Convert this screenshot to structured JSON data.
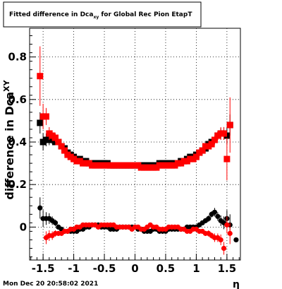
{
  "chart_data": {
    "type": "scatter",
    "title": "Fitted difference in Dca",
    "title_subscript": "xy",
    "title_suffix": " for Global Rec Pion EtapT",
    "xlabel": "η",
    "ylabel": "difference in Dca",
    "ylabel_subscript": "XY",
    "xlim": [
      -1.72,
      1.72
    ],
    "ylim": [
      -0.155,
      0.935
    ],
    "x_ticks": [
      -1.5,
      -1,
      -0.5,
      0,
      0.5,
      1,
      1.5
    ],
    "x_tick_labels": [
      "-1.5",
      "-1",
      "-0.5",
      "0",
      "0.5",
      "1",
      "1.5"
    ],
    "y_ticks": [
      0,
      0.2,
      0.4,
      0.6,
      0.8
    ],
    "y_tick_labels": [
      "0",
      "0.2",
      "0.4",
      "0.6",
      "0.8"
    ],
    "grid": true,
    "timestamp": "Mon Dec 20 20:58:02 2021",
    "colors": {
      "black_series": "#000000",
      "red_series": "#ff0000"
    },
    "series": [
      {
        "marker": "square",
        "color": "#000000",
        "x": [
          -1.55,
          -1.5,
          -1.45,
          -1.4,
          -1.35,
          -1.3,
          -1.25,
          -1.2,
          -1.15,
          -1.1,
          -1.05,
          -1.0,
          -0.95,
          -0.9,
          -0.85,
          -0.8,
          -0.75,
          -0.7,
          -0.65,
          -0.6,
          -0.55,
          -0.5,
          -0.45,
          -0.4,
          -0.35,
          -0.3,
          -0.25,
          -0.2,
          -0.15,
          -0.1,
          -0.05,
          0.0,
          0.05,
          0.1,
          0.15,
          0.2,
          0.25,
          0.3,
          0.35,
          0.4,
          0.45,
          0.5,
          0.55,
          0.6,
          0.65,
          0.7,
          0.75,
          0.8,
          0.85,
          0.9,
          0.95,
          1.0,
          1.05,
          1.1,
          1.15,
          1.2,
          1.25,
          1.3,
          1.35,
          1.4,
          1.45,
          1.5,
          1.55
        ],
        "y": [
          0.49,
          0.4,
          0.41,
          0.41,
          0.41,
          0.4,
          0.4,
          0.38,
          0.37,
          0.35,
          0.34,
          0.33,
          0.32,
          0.32,
          0.31,
          0.31,
          0.3,
          0.3,
          0.3,
          0.3,
          0.3,
          0.3,
          0.3,
          0.29,
          0.29,
          0.29,
          0.29,
          0.29,
          0.29,
          0.29,
          0.29,
          0.29,
          0.29,
          0.29,
          0.29,
          0.29,
          0.29,
          0.29,
          0.29,
          0.3,
          0.3,
          0.3,
          0.3,
          0.3,
          0.3,
          0.3,
          0.31,
          0.31,
          0.32,
          0.33,
          0.33,
          0.34,
          0.35,
          0.36,
          0.37,
          0.39,
          0.4,
          0.41,
          0.43,
          0.44,
          0.44,
          0.43,
          0.48
        ],
        "yerr": [
          0.05,
          0.04,
          0.03,
          0.025,
          0.02,
          0.015,
          0.012,
          0.01,
          0.01,
          0.008,
          0.008,
          0.007,
          0.007,
          0.006,
          0.006,
          0.006,
          0.006,
          0.006,
          0.006,
          0.006,
          0.006,
          0.006,
          0.006,
          0.006,
          0.006,
          0.006,
          0.006,
          0.006,
          0.006,
          0.006,
          0.006,
          0.006,
          0.006,
          0.006,
          0.006,
          0.006,
          0.006,
          0.006,
          0.006,
          0.006,
          0.006,
          0.006,
          0.006,
          0.006,
          0.006,
          0.006,
          0.006,
          0.007,
          0.007,
          0.008,
          0.008,
          0.009,
          0.01,
          0.01,
          0.012,
          0.015,
          0.015,
          0.02,
          0.02,
          0.025,
          0.03,
          0.04,
          0.05
        ]
      },
      {
        "marker": "square",
        "color": "#ff0000",
        "x": [
          -1.55,
          -1.5,
          -1.45,
          -1.4,
          -1.35,
          -1.3,
          -1.25,
          -1.2,
          -1.15,
          -1.1,
          -1.05,
          -1.0,
          -0.95,
          -0.9,
          -0.85,
          -0.8,
          -0.75,
          -0.7,
          -0.65,
          -0.6,
          -0.55,
          -0.5,
          -0.45,
          -0.4,
          -0.35,
          -0.3,
          -0.25,
          -0.2,
          -0.15,
          -0.1,
          -0.05,
          0.0,
          0.05,
          0.1,
          0.15,
          0.2,
          0.25,
          0.3,
          0.35,
          0.4,
          0.45,
          0.5,
          0.55,
          0.6,
          0.65,
          0.7,
          0.75,
          0.8,
          0.85,
          0.9,
          0.95,
          1.0,
          1.05,
          1.1,
          1.15,
          1.2,
          1.25,
          1.3,
          1.35,
          1.4,
          1.45,
          1.5,
          1.55
        ],
        "y": [
          0.71,
          0.52,
          0.52,
          0.44,
          0.43,
          0.42,
          0.4,
          0.38,
          0.36,
          0.34,
          0.33,
          0.32,
          0.31,
          0.31,
          0.3,
          0.3,
          0.3,
          0.29,
          0.29,
          0.29,
          0.29,
          0.29,
          0.29,
          0.29,
          0.29,
          0.29,
          0.29,
          0.29,
          0.29,
          0.29,
          0.29,
          0.29,
          0.29,
          0.28,
          0.28,
          0.28,
          0.28,
          0.28,
          0.28,
          0.29,
          0.29,
          0.29,
          0.29,
          0.29,
          0.29,
          0.3,
          0.3,
          0.31,
          0.31,
          0.32,
          0.32,
          0.33,
          0.35,
          0.36,
          0.38,
          0.38,
          0.39,
          0.41,
          0.43,
          0.44,
          0.44,
          0.32,
          0.48
        ],
        "yerr": [
          0.14,
          0.06,
          0.04,
          0.03,
          0.025,
          0.02,
          0.015,
          0.012,
          0.01,
          0.008,
          0.008,
          0.007,
          0.007,
          0.006,
          0.006,
          0.006,
          0.006,
          0.006,
          0.006,
          0.006,
          0.006,
          0.006,
          0.006,
          0.006,
          0.006,
          0.006,
          0.006,
          0.006,
          0.006,
          0.006,
          0.006,
          0.006,
          0.006,
          0.006,
          0.006,
          0.006,
          0.006,
          0.006,
          0.006,
          0.006,
          0.006,
          0.006,
          0.006,
          0.006,
          0.006,
          0.006,
          0.006,
          0.007,
          0.007,
          0.008,
          0.008,
          0.009,
          0.01,
          0.01,
          0.012,
          0.015,
          0.015,
          0.02,
          0.02,
          0.03,
          0.03,
          0.1,
          0.13
        ]
      },
      {
        "marker": "circle",
        "color": "#000000",
        "x": [
          -1.55,
          -1.5,
          -1.45,
          -1.4,
          -1.35,
          -1.3,
          -1.25,
          -1.2,
          -1.15,
          -1.1,
          -1.05,
          -1.0,
          -0.95,
          -0.9,
          -0.85,
          -0.8,
          -0.75,
          -0.7,
          -0.65,
          -0.6,
          -0.55,
          -0.5,
          -0.45,
          -0.4,
          -0.35,
          -0.3,
          -0.25,
          -0.2,
          -0.15,
          -0.1,
          -0.05,
          0.0,
          0.05,
          0.1,
          0.15,
          0.2,
          0.25,
          0.3,
          0.35,
          0.4,
          0.45,
          0.5,
          0.55,
          0.6,
          0.65,
          0.7,
          0.75,
          0.8,
          0.85,
          0.9,
          0.95,
          1.0,
          1.05,
          1.1,
          1.15,
          1.2,
          1.25,
          1.3,
          1.35,
          1.4,
          1.45,
          1.5,
          1.55,
          1.65
        ],
        "y": [
          0.09,
          0.04,
          0.04,
          0.04,
          0.03,
          0.02,
          0.0,
          -0.01,
          -0.02,
          -0.02,
          -0.02,
          -0.02,
          -0.02,
          -0.01,
          -0.01,
          0.0,
          0.0,
          0.01,
          0.01,
          0.01,
          0.0,
          0.0,
          0.0,
          -0.01,
          -0.01,
          -0.01,
          0.0,
          0.0,
          0.0,
          0.0,
          0.0,
          0.0,
          -0.01,
          -0.01,
          -0.02,
          -0.02,
          -0.02,
          -0.01,
          -0.01,
          -0.02,
          -0.02,
          -0.02,
          -0.01,
          -0.01,
          -0.01,
          -0.01,
          -0.01,
          -0.01,
          0.0,
          0.0,
          0.0,
          0.0,
          0.01,
          0.02,
          0.03,
          0.04,
          0.06,
          0.07,
          0.05,
          0.03,
          0.02,
          0.04,
          0.01,
          -0.06
        ],
        "yerr": [
          0.05,
          0.04,
          0.03,
          0.025,
          0.02,
          0.015,
          0.012,
          0.01,
          0.01,
          0.008,
          0.008,
          0.007,
          0.007,
          0.006,
          0.006,
          0.006,
          0.006,
          0.006,
          0.006,
          0.006,
          0.006,
          0.006,
          0.006,
          0.006,
          0.006,
          0.006,
          0.006,
          0.006,
          0.006,
          0.006,
          0.006,
          0.006,
          0.006,
          0.006,
          0.006,
          0.006,
          0.006,
          0.006,
          0.006,
          0.006,
          0.006,
          0.006,
          0.006,
          0.006,
          0.006,
          0.006,
          0.006,
          0.007,
          0.007,
          0.008,
          0.008,
          0.009,
          0.01,
          0.01,
          0.012,
          0.015,
          0.015,
          0.02,
          0.02,
          0.025,
          0.03,
          0.04,
          0.05,
          0.0
        ]
      },
      {
        "marker": "circle",
        "color": "#ff0000",
        "x": [
          -1.45,
          -1.4,
          -1.35,
          -1.3,
          -1.25,
          -1.2,
          -1.15,
          -1.1,
          -1.05,
          -1.0,
          -0.95,
          -0.9,
          -0.85,
          -0.8,
          -0.75,
          -0.7,
          -0.65,
          -0.6,
          -0.55,
          -0.5,
          -0.45,
          -0.4,
          -0.35,
          -0.3,
          -0.25,
          -0.2,
          -0.15,
          -0.1,
          -0.05,
          0.0,
          0.05,
          0.1,
          0.15,
          0.2,
          0.25,
          0.3,
          0.35,
          0.4,
          0.45,
          0.5,
          0.55,
          0.6,
          0.65,
          0.7,
          0.75,
          0.8,
          0.85,
          0.9,
          0.95,
          1.0,
          1.05,
          1.1,
          1.15,
          1.2,
          1.25,
          1.3,
          1.35,
          1.4,
          1.45,
          1.5,
          1.55
        ],
        "y": [
          -0.05,
          -0.04,
          -0.04,
          -0.03,
          -0.03,
          -0.03,
          -0.02,
          -0.02,
          -0.01,
          -0.01,
          0.0,
          0.0,
          0.01,
          0.01,
          0.01,
          0.01,
          0.01,
          0.0,
          0.01,
          0.01,
          0.01,
          0.01,
          0.01,
          0.0,
          0.0,
          0.0,
          0.0,
          0.0,
          -0.01,
          0.0,
          0.0,
          -0.01,
          -0.01,
          0.0,
          0.01,
          0.0,
          0.0,
          -0.01,
          -0.01,
          -0.01,
          0.0,
          0.0,
          0.0,
          0.0,
          -0.01,
          -0.01,
          -0.02,
          -0.02,
          -0.01,
          -0.01,
          -0.02,
          -0.02,
          -0.03,
          -0.03,
          -0.04,
          -0.05,
          -0.05,
          -0.06,
          -0.1,
          0.01,
          -0.03
        ],
        "yerr": [
          0.03,
          0.025,
          0.02,
          0.015,
          0.012,
          0.01,
          0.01,
          0.008,
          0.008,
          0.007,
          0.007,
          0.006,
          0.006,
          0.006,
          0.006,
          0.006,
          0.006,
          0.006,
          0.006,
          0.006,
          0.006,
          0.006,
          0.006,
          0.006,
          0.006,
          0.006,
          0.006,
          0.006,
          0.006,
          0.006,
          0.006,
          0.006,
          0.006,
          0.006,
          0.006,
          0.006,
          0.006,
          0.006,
          0.006,
          0.006,
          0.006,
          0.006,
          0.006,
          0.006,
          0.006,
          0.007,
          0.007,
          0.008,
          0.008,
          0.009,
          0.01,
          0.01,
          0.012,
          0.015,
          0.015,
          0.02,
          0.02,
          0.025,
          0.03,
          0.04,
          0.05
        ]
      }
    ]
  }
}
